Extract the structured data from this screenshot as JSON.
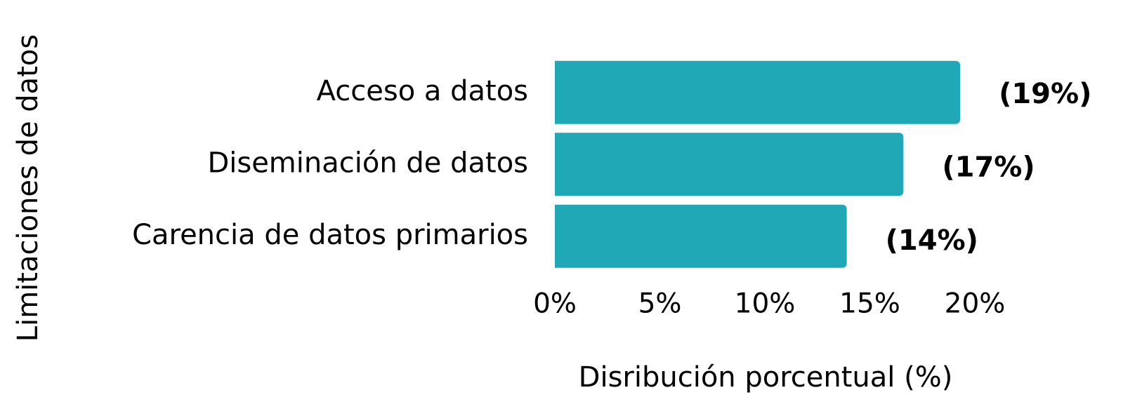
{
  "chart_data": {
    "type": "bar",
    "orientation": "horizontal",
    "categories": [
      "Acceso a datos",
      "Diseminación de datos",
      "Carencia de datos primarios"
    ],
    "values": [
      19.3,
      16.6,
      13.9
    ],
    "value_labels": [
      "(19%)",
      "(17%)",
      "(14%)"
    ],
    "color": "#20a8b6",
    "xlabel": "Disribución porcentual (%)",
    "ylabel": "Limitaciones de datos",
    "xlim": [
      0,
      20
    ],
    "xticks": [
      {
        "value": 0,
        "label": "0%"
      },
      {
        "value": 5,
        "label": "5%"
      },
      {
        "value": 10,
        "label": "10%"
      },
      {
        "value": 15,
        "label": "15%"
      },
      {
        "value": 20,
        "label": "20%"
      }
    ],
    "grid": false
  }
}
